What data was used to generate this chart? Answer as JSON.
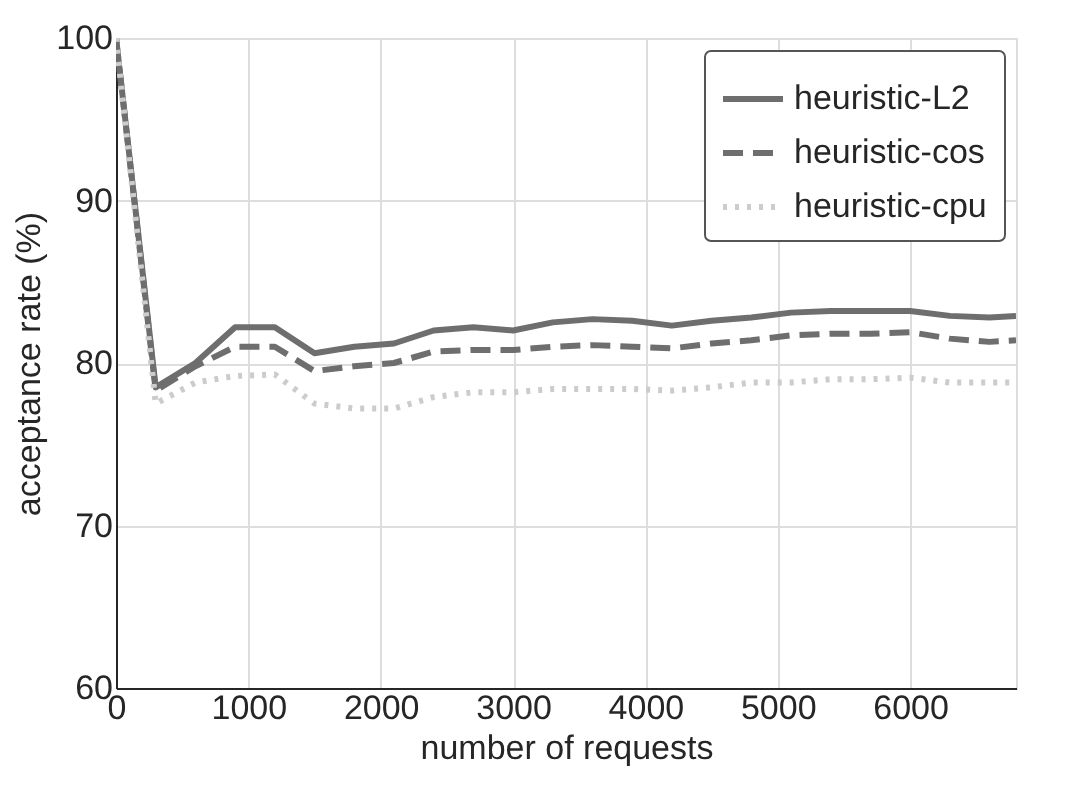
{
  "chart_data": {
    "type": "line",
    "xlabel": "number of requests",
    "ylabel": "acceptance rate (%)",
    "x": [
      0,
      300,
      600,
      900,
      1200,
      1500,
      1800,
      2100,
      2400,
      2700,
      3000,
      3300,
      3600,
      3900,
      4200,
      4500,
      4800,
      5100,
      5400,
      5700,
      6000,
      6300,
      6600,
      6800
    ],
    "series": [
      {
        "name": "heuristic-L2",
        "color": "#6e6e6e",
        "line_style": "solid",
        "values": [
          100,
          78.5,
          80,
          82.2,
          82.2,
          80.6,
          81,
          81.2,
          82,
          82.2,
          82,
          82.5,
          82.7,
          82.6,
          82.3,
          82.6,
          82.8,
          83.1,
          83.2,
          83.2,
          83.2,
          82.9,
          82.8,
          82.9
        ]
      },
      {
        "name": "heuristic-cos",
        "color": "#6e6e6e",
        "line_style": "dashed",
        "values": [
          100,
          78.3,
          79.8,
          81,
          81,
          79.5,
          79.8,
          80,
          80.7,
          80.8,
          80.8,
          81,
          81.1,
          81,
          80.9,
          81.2,
          81.4,
          81.7,
          81.8,
          81.8,
          81.9,
          81.5,
          81.3,
          81.4
        ]
      },
      {
        "name": "heuristic-cpu",
        "color": "#cccccc",
        "line_style": "dotted",
        "values": [
          100,
          77.5,
          78.8,
          79.2,
          79.3,
          77.5,
          77.2,
          77.2,
          77.9,
          78.2,
          78.2,
          78.4,
          78.4,
          78.4,
          78.3,
          78.5,
          78.8,
          78.8,
          79,
          79,
          79.1,
          78.8,
          78.8,
          78.8
        ]
      }
    ],
    "xlim": [
      0,
      6800
    ],
    "xticks": [
      0,
      1000,
      2000,
      3000,
      4000,
      5000,
      6000
    ],
    "ylim": [
      60,
      100
    ],
    "yticks": [
      60,
      70,
      80,
      90,
      100
    ],
    "grid": true,
    "legend": "top right",
    "marker": "none"
  }
}
